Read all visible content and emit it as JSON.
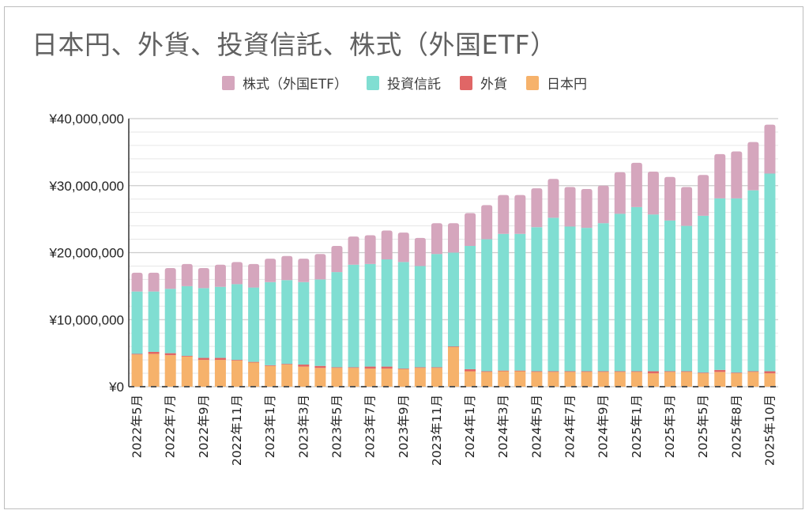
{
  "chart_data": {
    "type": "bar",
    "stacked": true,
    "title": "日本円、外貨、投資信託、株式（外国ETF）",
    "xlabel": "",
    "ylabel": "",
    "ylim": [
      0,
      40000000
    ],
    "yticks": [
      0,
      10000000,
      20000000,
      30000000,
      40000000
    ],
    "ytick_labels": [
      "¥0",
      "¥10,000,000",
      "¥20,000,000",
      "¥30,000,000",
      "¥40,000,000"
    ],
    "minor_grid_step": 2000000,
    "grid": true,
    "legend_position": "top-center",
    "categories": [
      "2022年5月",
      "",
      "2022年7月",
      "",
      "2022年9月",
      "",
      "2022年11月",
      "",
      "2023年1月",
      "",
      "2023年3月",
      "",
      "2023年5月",
      "",
      "2023年7月",
      "",
      "2023年9月",
      "",
      "2023年11月",
      "",
      "2024年1月",
      "",
      "2024年3月",
      "",
      "2024年5月",
      "",
      "2024年7月",
      "",
      "2024年9月",
      "",
      "2025年1月",
      "",
      "2025年3月",
      "",
      "2025年5月",
      "",
      "2025年8月",
      "",
      "2025年10月"
    ],
    "series": [
      {
        "name": "日本円",
        "color": "#f6b26b",
        "values": [
          4.8,
          4.9,
          4.7,
          4.5,
          4.0,
          4.0,
          3.9,
          3.6,
          3.1,
          3.3,
          3.0,
          2.8,
          2.8,
          2.8,
          2.7,
          2.7,
          2.6,
          2.8,
          2.8,
          5.9,
          2.3,
          2.2,
          2.3,
          2.3,
          2.2,
          2.2,
          2.2,
          2.2,
          2.2,
          2.2,
          2.2,
          2.0,
          2.2,
          2.2,
          2.0,
          2.2,
          2.0,
          2.2,
          2.0
        ]
      },
      {
        "name": "外貨",
        "color": "#e06666",
        "values": [
          0.1,
          0.3,
          0.3,
          0.1,
          0.3,
          0.3,
          0.1,
          0.1,
          0.1,
          0.1,
          0.3,
          0.3,
          0.1,
          0.1,
          0.3,
          0.3,
          0.1,
          0.1,
          0.1,
          0.1,
          0.3,
          0.1,
          0.1,
          0.1,
          0.1,
          0.1,
          0.1,
          0.1,
          0.1,
          0.1,
          0.1,
          0.3,
          0.1,
          0.1,
          0.1,
          0.3,
          0.1,
          0.1,
          0.3
        ]
      },
      {
        "name": "投資信託",
        "color": "#80ded2",
        "values": [
          9.3,
          9.0,
          9.6,
          10.4,
          10.4,
          10.6,
          11.3,
          11.1,
          12.4,
          12.5,
          12.3,
          12.9,
          14.2,
          15.3,
          15.3,
          16.0,
          15.9,
          15.1,
          16.9,
          14.0,
          18.4,
          19.7,
          20.4,
          20.4,
          21.5,
          22.9,
          21.6,
          21.4,
          22.1,
          23.5,
          24.5,
          23.4,
          22.5,
          21.7,
          23.4,
          25.6,
          26.0,
          27.0,
          29.5
        ]
      },
      {
        "name": "株式（外国ETF）",
        "color": "#d5a6bd",
        "values": [
          2.8,
          2.8,
          3.1,
          3.3,
          3.0,
          3.3,
          3.3,
          3.5,
          3.5,
          3.6,
          3.5,
          3.8,
          3.9,
          4.2,
          4.3,
          4.3,
          4.4,
          4.2,
          4.6,
          4.4,
          4.9,
          5.1,
          5.8,
          5.8,
          5.8,
          5.8,
          5.9,
          5.8,
          5.6,
          6.2,
          6.6,
          6.4,
          6.5,
          5.8,
          6.1,
          6.6,
          7.0,
          7.2,
          7.3
        ]
      }
    ],
    "units": "values in millions of JPY (×1,000,000)"
  }
}
